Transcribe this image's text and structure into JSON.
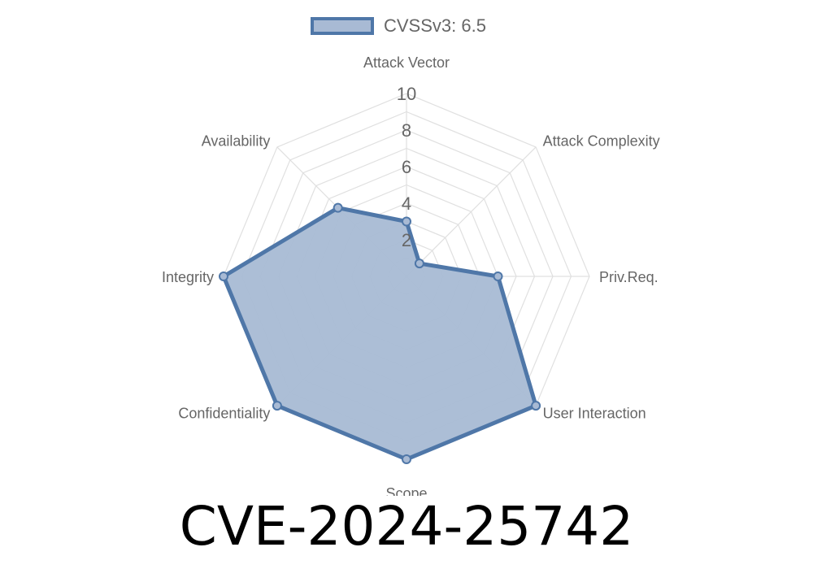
{
  "chart_data": {
    "type": "radar",
    "categories": [
      "Attack Vector",
      "Attack Complexity",
      "Priv.Req.",
      "User Interaction",
      "Scope",
      "Confidentiality",
      "Integrity",
      "Availability"
    ],
    "series": [
      {
        "name": "CVSSv3: 6.5",
        "values": [
          3.0,
          1.0,
          5.0,
          10.0,
          10.0,
          10.0,
          10.0,
          5.3
        ]
      }
    ],
    "rlim": [
      0,
      10
    ],
    "ticks": [
      "2",
      "4",
      "6",
      "8",
      "10"
    ],
    "tick_values": [
      2,
      4,
      6,
      8,
      10
    ],
    "grid": true,
    "legend_position": "top",
    "colors": {
      "line": "#4f77a8",
      "fill": "#a8bad4",
      "grid": "#e0e0e0"
    }
  },
  "title": "CVE-2024-25742"
}
